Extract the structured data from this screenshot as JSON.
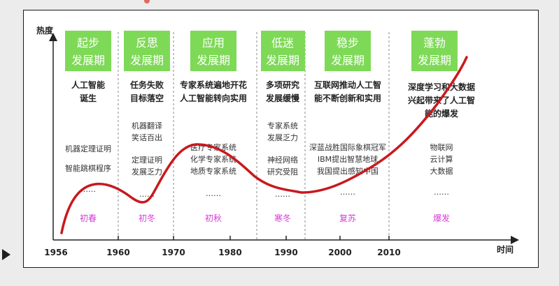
{
  "axes": {
    "y_label": "热度",
    "x_label": "时间",
    "years": [
      "1956",
      "1960",
      "1970",
      "1980",
      "1990",
      "2000",
      "2010"
    ]
  },
  "periods": [
    {
      "badge": [
        "起步",
        "发展期"
      ],
      "headline": [
        "人工智能",
        "诞生"
      ],
      "events": [
        "机器定理证明",
        "智能跳棋程序"
      ],
      "ellipsis": "……",
      "season": "初春"
    },
    {
      "badge": [
        "反思",
        "发展期"
      ],
      "headline": [
        "任务失败",
        "目标落空"
      ],
      "events": [
        "机器翻译",
        "笑话百出",
        "定理证明",
        "发展乏力"
      ],
      "ellipsis": "……",
      "season": "初冬"
    },
    {
      "badge": [
        "应用",
        "发展期"
      ],
      "headline": [
        "专家系统遍地开花",
        "人工智能转向实用"
      ],
      "events": [
        "医疗专家系统",
        "化学专家系统",
        "地质专家系统"
      ],
      "ellipsis": "……",
      "season": "初秋"
    },
    {
      "badge": [
        "低迷",
        "发展期"
      ],
      "headline": [
        "多项研究",
        "发展缓慢"
      ],
      "events": [
        "专家系统",
        "发展乏力",
        "神经网络",
        "研究受阻"
      ],
      "ellipsis": "……",
      "season": "寒冬"
    },
    {
      "badge": [
        "稳步",
        "发展期"
      ],
      "headline": [
        "互联网推动人工智",
        "能不断创新和实用"
      ],
      "events": [
        "深蓝战胜国际象棋冠军",
        "IBM提出智慧地球",
        "我国提出感知中国"
      ],
      "ellipsis": "……",
      "season": "复苏"
    },
    {
      "badge": [
        "蓬勃",
        "发展期"
      ],
      "headline": [
        "深度学习和大数据",
        "兴起带来了人工智",
        "能的爆发"
      ],
      "events": [
        "物联网",
        "云计算",
        "大数据"
      ],
      "ellipsis": "……",
      "season": "爆发"
    }
  ],
  "colors": {
    "badge_fill": "#7ed957",
    "badge_text": "#ffffff",
    "season_text": "#d63ad6",
    "curve": "#c8191e",
    "text": "#222222"
  },
  "icons": {
    "play": "play-icon"
  }
}
